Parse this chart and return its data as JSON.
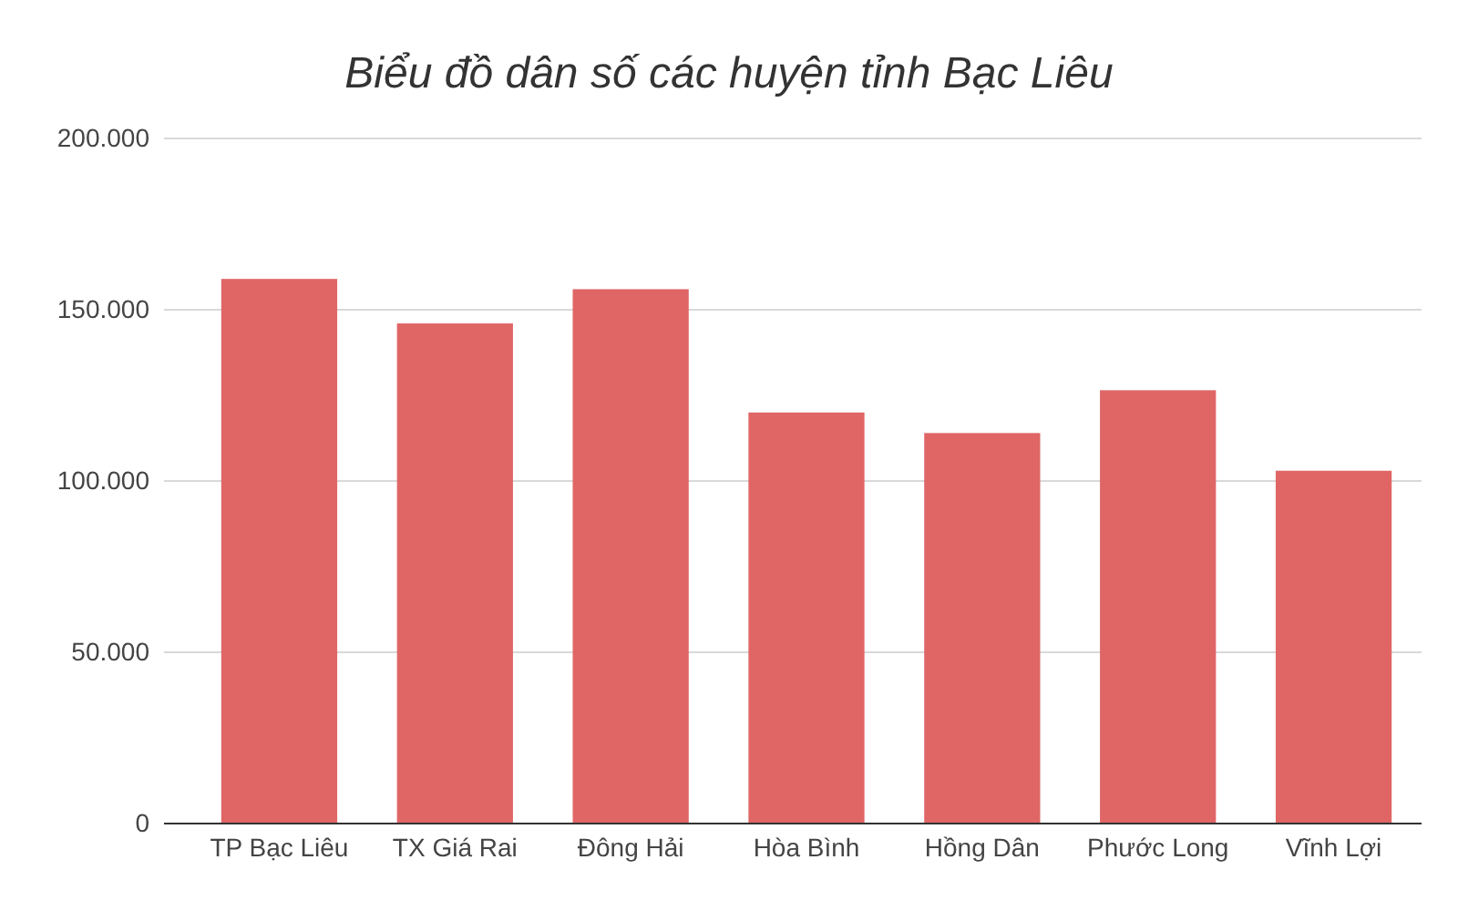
{
  "chart_data": {
    "type": "bar",
    "title": "Biểu đồ dân số các huyện tỉnh Bạc Liêu",
    "categories": [
      "TP Bạc Liêu",
      "TX Giá Rai",
      "Đông Hải",
      "Hòa Bình",
      "Hồng Dân",
      "Phước Long",
      "Vĩnh Lợi"
    ],
    "values": [
      159000,
      146000,
      156000,
      120000,
      114000,
      126500,
      103000
    ],
    "color": "#e06666",
    "ylim": [
      0,
      200000
    ],
    "yticks": [
      {
        "value": 0,
        "label": "0"
      },
      {
        "value": 50000,
        "label": "50.000"
      },
      {
        "value": 100000,
        "label": "100.000"
      },
      {
        "value": 150000,
        "label": "150.000"
      },
      {
        "value": 200000,
        "label": "200.000"
      }
    ],
    "grid": "y"
  }
}
